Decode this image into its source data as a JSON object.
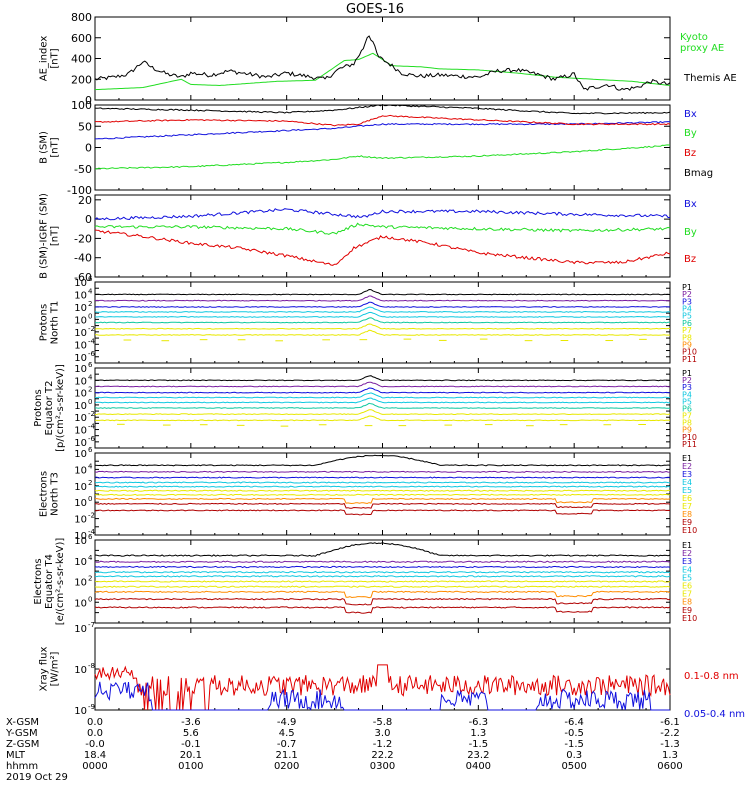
{
  "title": "GOES-16",
  "colors": {
    "black": "#000000",
    "red": "#e00000",
    "green": "#22dd22",
    "blue": "#1010dd",
    "purple": "#7a1ea0",
    "violet": "#c040c0",
    "cyan": "#10c8e0",
    "teal": "#10c8a0",
    "yellow": "#e8e800",
    "orange": "#ff8c00",
    "darkred": "#b00000"
  },
  "chart_data": [
    {
      "panel": "ae",
      "type": "line",
      "ylabel": "AE_index\n[nT]",
      "ylim": [
        0,
        800
      ],
      "yticks": [
        0,
        200,
        400,
        600,
        800
      ],
      "series": [
        {
          "name": "Kyoto proxy AE",
          "color": "green",
          "t": [
            0,
            0.25,
            0.5,
            0.9,
            1.0,
            1.3,
            1.6,
            1.9,
            2.3,
            2.6,
            2.75,
            2.9,
            3.1,
            3.4,
            3.6,
            4.0,
            4.4,
            4.8,
            5.2,
            5.6,
            6.0
          ],
          "values": [
            100,
            110,
            120,
            200,
            150,
            140,
            160,
            180,
            190,
            380,
            390,
            450,
            330,
            320,
            300,
            290,
            260,
            220,
            200,
            180,
            140
          ]
        },
        {
          "name": "Themis AE",
          "color": "black",
          "t": [
            0,
            0.2,
            0.35,
            0.5,
            0.6,
            0.75,
            0.9,
            1.0,
            1.2,
            1.4,
            1.6,
            1.8,
            2.0,
            2.2,
            2.4,
            2.55,
            2.7,
            2.8,
            2.85,
            2.9,
            2.95,
            3.0,
            3.1,
            3.2,
            3.3,
            3.4,
            3.6,
            3.8,
            4.0,
            4.2,
            4.4,
            4.6,
            4.8,
            5.0,
            5.1,
            5.2,
            5.35,
            5.5,
            5.65,
            5.8,
            6.0
          ],
          "values": [
            200,
            220,
            250,
            370,
            310,
            250,
            220,
            260,
            240,
            280,
            250,
            220,
            260,
            230,
            200,
            300,
            350,
            500,
            640,
            560,
            420,
            390,
            330,
            260,
            240,
            230,
            240,
            230,
            220,
            280,
            290,
            250,
            200,
            250,
            100,
            120,
            150,
            100,
            120,
            180,
            150
          ]
        }
      ]
    },
    {
      "panel": "b",
      "type": "line",
      "ylabel": "B (SM)\n[nT]",
      "ylim": [
        -100,
        100
      ],
      "yticks": [
        -100,
        -50,
        0,
        50,
        100
      ],
      "series": [
        {
          "name": "Bx",
          "color": "blue",
          "t": [
            0,
            1,
            2,
            2.5,
            3,
            4,
            5,
            6
          ],
          "values": [
            20,
            30,
            40,
            45,
            55,
            55,
            55,
            60
          ]
        },
        {
          "name": "By",
          "color": "green",
          "t": [
            0,
            1,
            2,
            2.5,
            2.75,
            3,
            4,
            5,
            6
          ],
          "values": [
            -50,
            -45,
            -35,
            -28,
            -20,
            -25,
            -20,
            -10,
            5
          ]
        },
        {
          "name": "Bz",
          "color": "red",
          "t": [
            0,
            1,
            2,
            2.5,
            2.75,
            3,
            3.5,
            4,
            5,
            6
          ],
          "values": [
            60,
            65,
            62,
            52,
            55,
            75,
            70,
            65,
            55,
            55
          ]
        },
        {
          "name": "Bmag",
          "color": "black",
          "t": [
            0,
            1,
            2,
            2.5,
            3,
            4,
            5,
            6
          ],
          "values": [
            92,
            88,
            82,
            88,
            100,
            92,
            80,
            82
          ]
        }
      ]
    },
    {
      "panel": "db",
      "type": "line",
      "ylabel": "B (SM)-IGRF (SM)\n[nT]",
      "ylim": [
        -60,
        25
      ],
      "yticks": [
        -60,
        -40,
        -20,
        0,
        20
      ],
      "series": [
        {
          "name": "Bx",
          "color": "blue",
          "t": [
            0,
            1,
            2,
            2.5,
            2.8,
            3,
            4,
            5,
            6
          ],
          "values": [
            0,
            3,
            10,
            5,
            2,
            8,
            8,
            5,
            3
          ]
        },
        {
          "name": "By",
          "color": "green",
          "t": [
            0,
            1,
            2,
            2.5,
            2.75,
            3,
            4,
            5,
            6
          ],
          "values": [
            -8,
            -8,
            -10,
            -15,
            -5,
            -8,
            -10,
            -12,
            -10
          ]
        },
        {
          "name": "Bz",
          "color": "red",
          "t": [
            0,
            0.5,
            1,
            1.5,
            2,
            2.5,
            2.7,
            3,
            3.5,
            4,
            5,
            5.5,
            6
          ],
          "values": [
            -12,
            -18,
            -25,
            -30,
            -38,
            -48,
            -30,
            -18,
            -25,
            -35,
            -45,
            -45,
            -35
          ]
        }
      ]
    },
    {
      "panel": "p1",
      "type": "line",
      "ylabel": "Protons\nNorth T1",
      "ylog": true,
      "ylim": [
        -7,
        6
      ],
      "ytick_exps": [
        -6,
        -4,
        -2,
        0,
        2,
        4,
        6
      ],
      "labels": [
        "P1",
        "P2",
        "P3",
        "P4",
        "P5",
        "P6",
        "P7",
        "P8",
        "P9",
        "P10",
        "P11"
      ],
      "label_colors": [
        "black",
        "purple",
        "blue",
        "cyan",
        "cyan",
        "teal",
        "yellow",
        "yellow",
        "orange",
        "darkred",
        "darkred"
      ],
      "levels": [
        4.0,
        3.0,
        2.0,
        1.2,
        0.4,
        -0.5,
        -1.5,
        -2.5
      ]
    },
    {
      "panel": "p2",
      "type": "line",
      "ylabel": "Protons\nEquator T2\n[p/(cm²-s-sr-keV)]",
      "ylog": true,
      "ylim": [
        -7,
        6
      ],
      "ytick_exps": [
        -6,
        -4,
        -2,
        0,
        2,
        4,
        6
      ],
      "labels": [
        "P1",
        "P2",
        "P3",
        "P4",
        "P5",
        "P6",
        "P7",
        "P8",
        "P9",
        "P10",
        "P11"
      ],
      "label_colors": [
        "black",
        "purple",
        "blue",
        "cyan",
        "cyan",
        "teal",
        "yellow",
        "yellow",
        "orange",
        "darkred",
        "darkred"
      ],
      "levels": [
        4.0,
        3.0,
        2.0,
        1.2,
        0.4,
        -0.5,
        -1.5,
        -2.5
      ]
    },
    {
      "panel": "e1",
      "type": "line",
      "ylabel": "Electrons\nNorth T3",
      "ylog": true,
      "ylim": [
        -4,
        6
      ],
      "ytick_exps": [
        -4,
        -2,
        0,
        2,
        4,
        6
      ],
      "labels": [
        "E1",
        "E2",
        "E3",
        "E4",
        "E5",
        "E6",
        "E7",
        "E8",
        "E9",
        "E10"
      ],
      "label_colors": [
        "black",
        "purple",
        "blue",
        "cyan",
        "cyan",
        "yellow",
        "yellow",
        "orange",
        "darkred",
        "darkred"
      ],
      "levels": [
        4.5,
        3.7,
        3.0,
        2.4,
        1.9,
        1.4,
        0.9,
        0.4,
        -0.2,
        -1.0
      ]
    },
    {
      "panel": "e2",
      "type": "line",
      "ylabel": "Electrons\nEquator T4\n[e/(cm²-s-sr-keV)]",
      "ylog": true,
      "ylim": [
        -2,
        6
      ],
      "ytick_exps": [
        0,
        2,
        4,
        6
      ],
      "labels": [
        "E1",
        "E2",
        "E3",
        "E4",
        "E5",
        "E6",
        "E7",
        "E8",
        "E9",
        "E10"
      ],
      "label_colors": [
        "black",
        "purple",
        "blue",
        "cyan",
        "cyan",
        "yellow",
        "yellow",
        "orange",
        "darkred",
        "darkred"
      ],
      "levels": [
        4.5,
        3.9,
        3.4,
        2.9,
        2.5,
        2.0,
        1.5,
        1.0,
        0.3,
        -0.5
      ]
    },
    {
      "panel": "xray",
      "type": "line",
      "ylabel": "Xray flux\n[W/m²]",
      "ylog": true,
      "ylim": [
        -9,
        -7
      ],
      "ytick_exps": [
        -9,
        -8,
        -7
      ],
      "series": [
        {
          "name": "0.1-0.8 nm",
          "color": "red"
        },
        {
          "name": "0.05-0.4 nm",
          "color": "blue"
        }
      ]
    }
  ],
  "axis": {
    "xticks": [
      "0000",
      "0100",
      "0200",
      "0300",
      "0400",
      "0500",
      "0600"
    ],
    "xgsm": [
      "0.0",
      "-3.6",
      "-4.9",
      "-5.8",
      "-6.3",
      "-6.4",
      "-6.1"
    ],
    "ygsm": [
      "0.0",
      "5.6",
      "4.5",
      "3.0",
      "1.3",
      "-0.5",
      "-2.2"
    ],
    "zgsm": [
      "-0.0",
      "-0.1",
      "-0.7",
      "-1.2",
      "-1.5",
      "-1.5",
      "-1.3"
    ],
    "mlt": [
      "18.4",
      "20.1",
      "21.1",
      "22.2",
      "23.2",
      "0.3",
      "1.3"
    ],
    "row_labels": [
      "X-GSM",
      "Y-GSM",
      "Z-GSM",
      "MLT",
      "hhmm",
      "2019 Oct 29"
    ]
  },
  "panel_labels": {
    "ae_kyoto": "Kyoto\nproxy AE",
    "ae_themis": "Themis AE",
    "b_bx": "Bx",
    "b_by": "By",
    "b_bz": "Bz",
    "b_bmag": "Bmag",
    "db_bx": "Bx",
    "db_by": "By",
    "db_bz": "Bz",
    "xray_long": "0.1-0.8 nm",
    "xray_short": "0.05-0.4 nm"
  }
}
